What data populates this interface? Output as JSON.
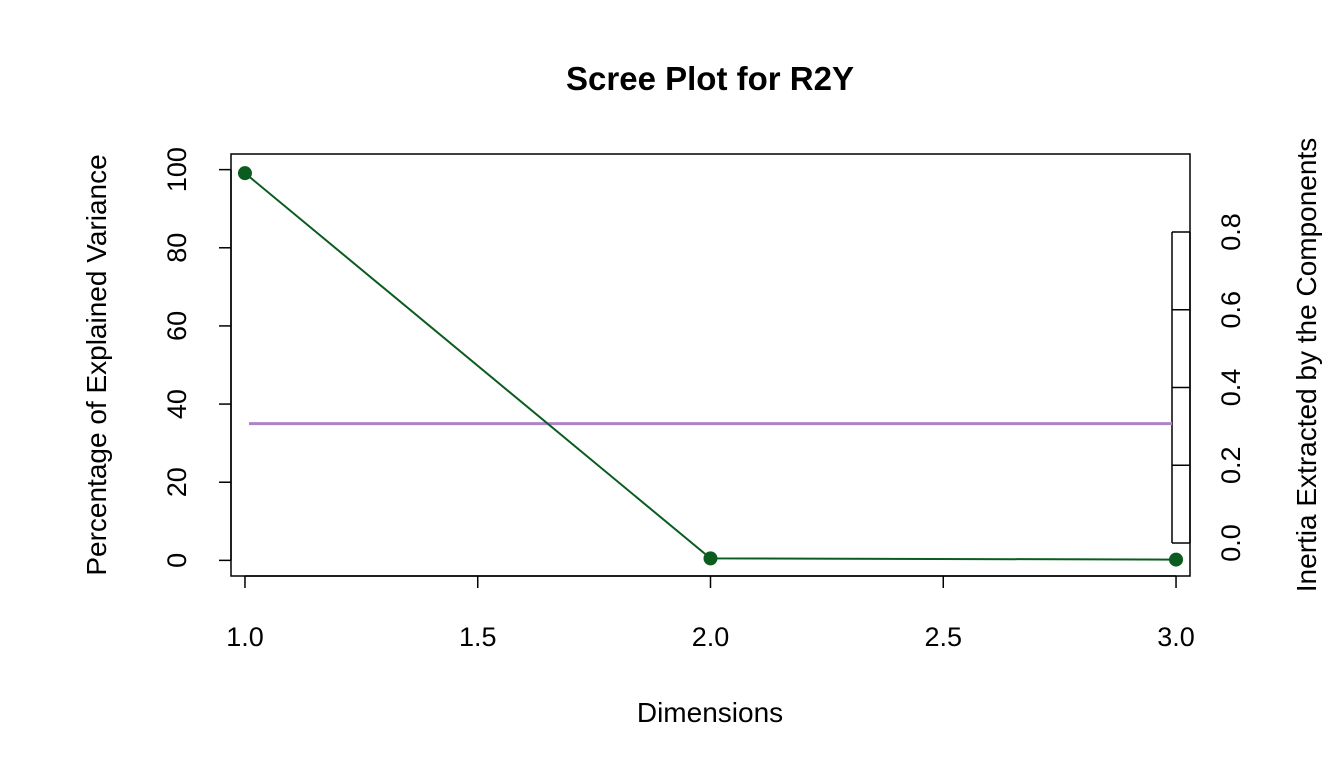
{
  "chart_data": {
    "type": "line",
    "title": "Scree Plot for R2Y",
    "xlabel": "Dimensions",
    "ylabel": "Percentage of Explained Variance",
    "y2label": "Inertia Extracted by the Components",
    "x": [
      1,
      2,
      3
    ],
    "series": [
      {
        "values": [
          99.1,
          0.5,
          0.2
        ],
        "color": "#0b5c1f"
      }
    ],
    "reference_line": {
      "y": 35,
      "color": "#ad84c6"
    },
    "xlim": [
      0.97,
      3.03
    ],
    "ylim": [
      -4,
      104
    ],
    "xticks": [
      "1.0",
      "1.5",
      "2.0",
      "2.5",
      "3.0"
    ],
    "xtick_values": [
      1.0,
      1.5,
      2.0,
      2.5,
      3.0
    ],
    "yticks": [
      "0",
      "20",
      "40",
      "60",
      "80",
      "100"
    ],
    "ytick_values": [
      0,
      20,
      40,
      60,
      80,
      100
    ],
    "y2_range": [
      0,
      0.8
    ],
    "y2ticks": [
      "0.0",
      "0.2",
      "0.4",
      "0.6",
      "0.8"
    ],
    "y2tick_values": [
      0.0,
      0.2,
      0.4,
      0.6,
      0.8
    ],
    "grid": false,
    "legend": "none"
  }
}
